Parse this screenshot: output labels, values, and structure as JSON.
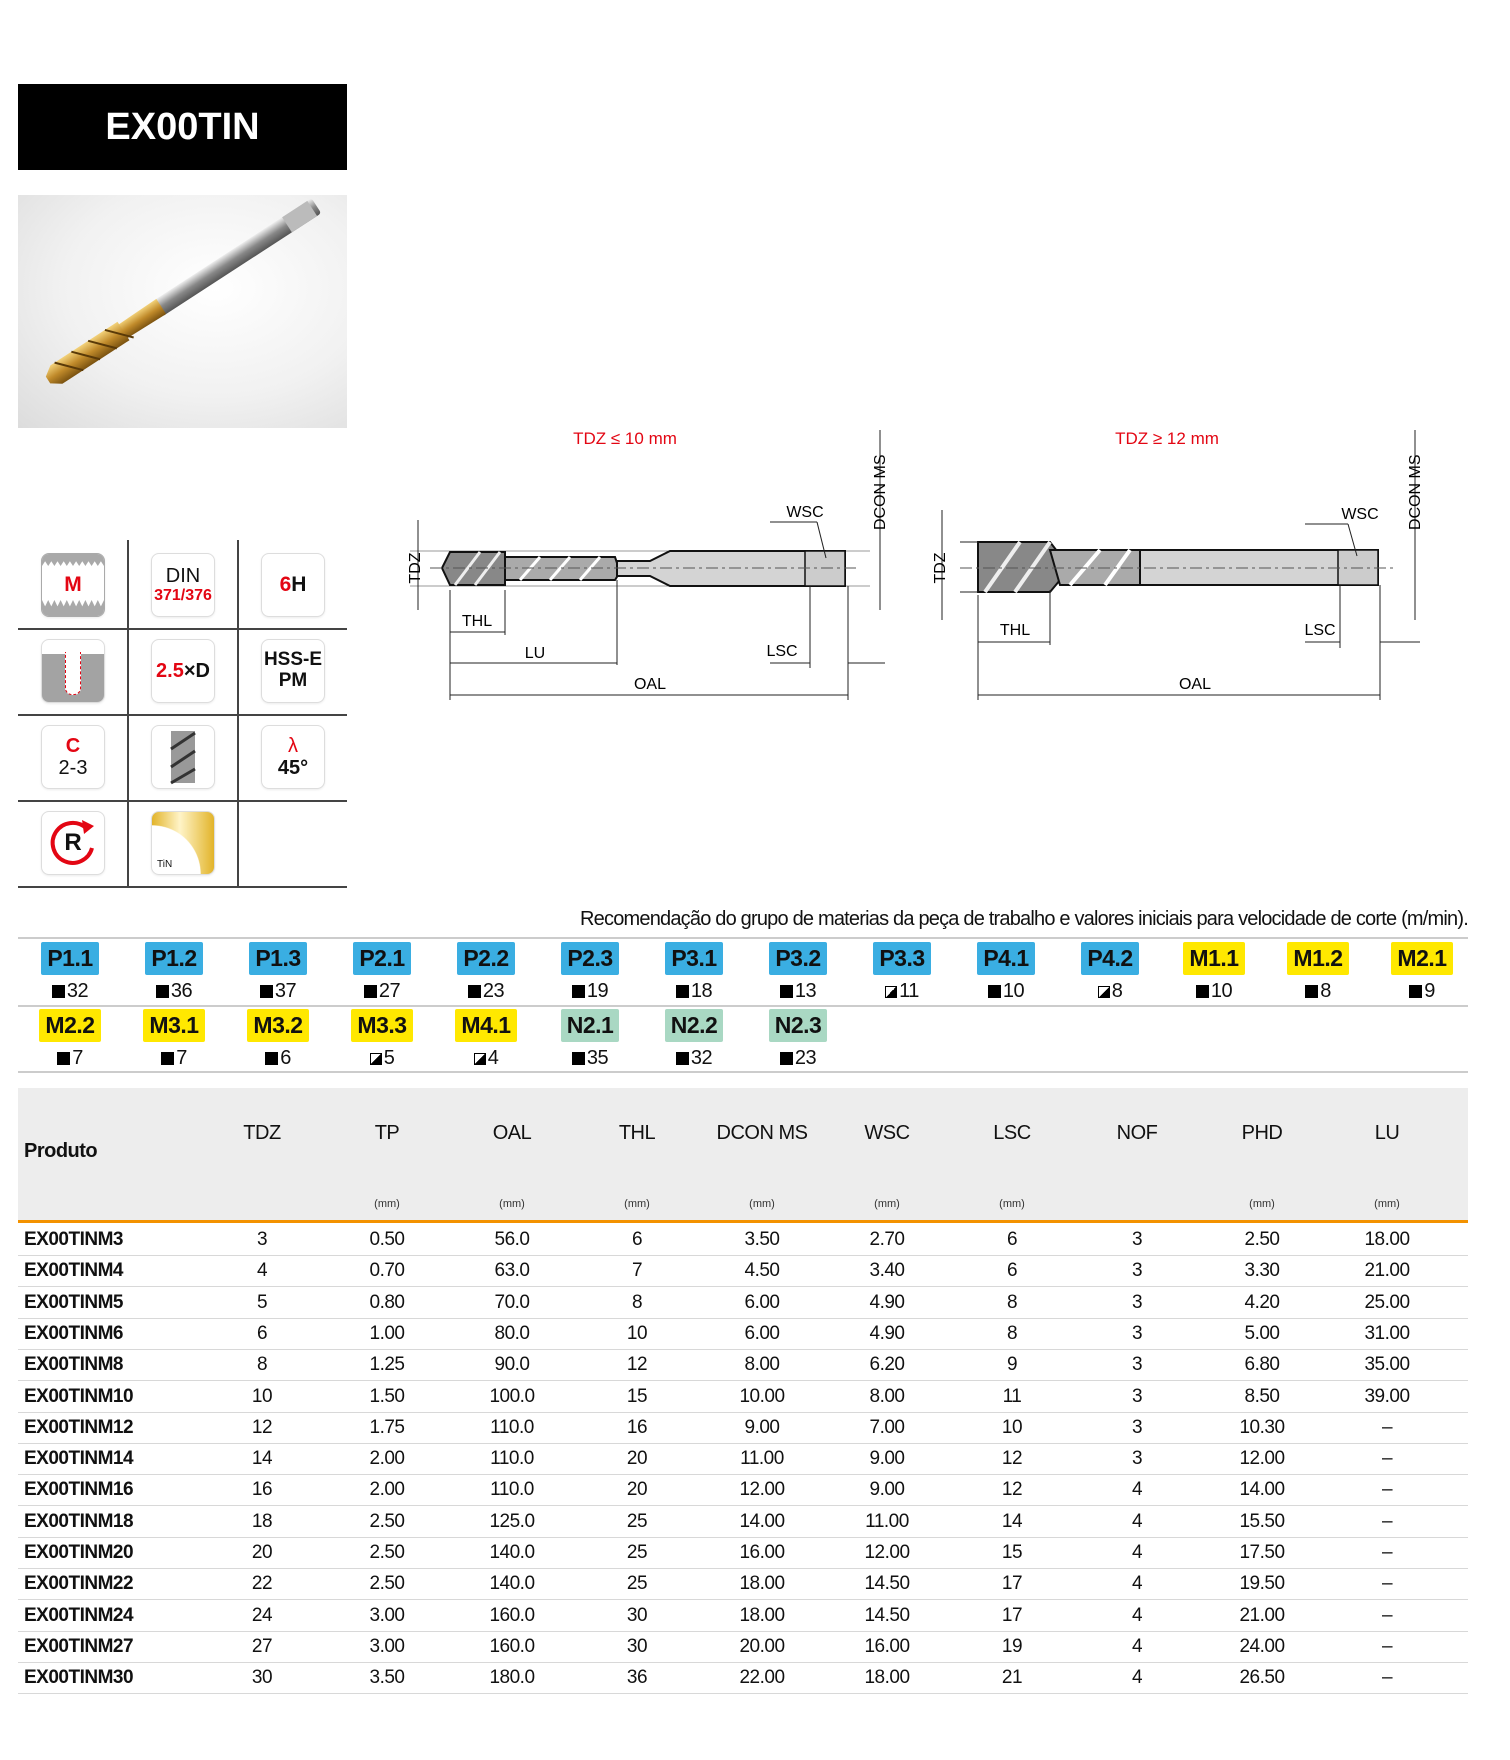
{
  "title": "EX00TIN",
  "icon_grid": {
    "thread_profile": "M",
    "standard_top": "DIN",
    "standard_bottom": "371/376",
    "tolerance_num": "6",
    "tolerance_letter": "H",
    "depth_num": "2.5",
    "depth_suffix": "×D",
    "material_line1": "HSS-E",
    "material_line2": "PM",
    "chamfer_letter": "C",
    "chamfer_value": "2-3",
    "helix_symbol": "λ",
    "helix_value": "45°",
    "rotation_letter": "R",
    "coating": "TiN",
    "coating_color": "#e2b42a"
  },
  "diagrams": [
    {
      "caption": "TDZ ≤ 10 mm",
      "labels": {
        "tdz": "TDZ",
        "thl": "THL",
        "lu": "LU",
        "oal": "OAL",
        "lsc": "LSC",
        "wsc": "WSC",
        "dcon": "DCON MS"
      }
    },
    {
      "caption": "TDZ ≥ 12 mm",
      "labels": {
        "tdz": "TDZ",
        "thl": "THL",
        "oal": "OAL",
        "lsc": "LSC",
        "wsc": "WSC",
        "dcon": "DCON MS"
      }
    }
  ],
  "recommendation_text": "Recomendação do grupo de materias da peça de trabalho e valores iniciais para velocidade de corte (m/min).",
  "colors": {
    "P": "#3aaee2",
    "M": "#ffe800",
    "N": "#a9d8c3",
    "accent_red": "#e30613",
    "header_rule": "#f39200"
  },
  "materials": [
    {
      "code": "P1.1",
      "group": "P",
      "symbol": "full",
      "value": "32"
    },
    {
      "code": "P1.2",
      "group": "P",
      "symbol": "full",
      "value": "36"
    },
    {
      "code": "P1.3",
      "group": "P",
      "symbol": "full",
      "value": "37"
    },
    {
      "code": "P2.1",
      "group": "P",
      "symbol": "full",
      "value": "27"
    },
    {
      "code": "P2.2",
      "group": "P",
      "symbol": "full",
      "value": "23"
    },
    {
      "code": "P2.3",
      "group": "P",
      "symbol": "full",
      "value": "19"
    },
    {
      "code": "P3.1",
      "group": "P",
      "symbol": "full",
      "value": "18"
    },
    {
      "code": "P3.2",
      "group": "P",
      "symbol": "full",
      "value": "13"
    },
    {
      "code": "P3.3",
      "group": "P",
      "symbol": "half",
      "value": "11"
    },
    {
      "code": "P4.1",
      "group": "P",
      "symbol": "full",
      "value": "10"
    },
    {
      "code": "P4.2",
      "group": "P",
      "symbol": "half",
      "value": "8"
    },
    {
      "code": "M1.1",
      "group": "M",
      "symbol": "full",
      "value": "10"
    },
    {
      "code": "M1.2",
      "group": "M",
      "symbol": "full",
      "value": "8"
    },
    {
      "code": "M2.1",
      "group": "M",
      "symbol": "full",
      "value": "9"
    },
    {
      "code": "M2.2",
      "group": "M",
      "symbol": "full",
      "value": "7"
    },
    {
      "code": "M3.1",
      "group": "M",
      "symbol": "full",
      "value": "7"
    },
    {
      "code": "M3.2",
      "group": "M",
      "symbol": "full",
      "value": "6"
    },
    {
      "code": "M3.3",
      "group": "M",
      "symbol": "half",
      "value": "5"
    },
    {
      "code": "M4.1",
      "group": "M",
      "symbol": "half",
      "value": "4"
    },
    {
      "code": "N2.1",
      "group": "N",
      "symbol": "full",
      "value": "35"
    },
    {
      "code": "N2.2",
      "group": "N",
      "symbol": "full",
      "value": "32"
    },
    {
      "code": "N2.3",
      "group": "N",
      "symbol": "full",
      "value": "23"
    }
  ],
  "table": {
    "product_header": "Produto",
    "columns": [
      {
        "label": "TDZ",
        "unit": ""
      },
      {
        "label": "TP",
        "unit": "(mm)"
      },
      {
        "label": "OAL",
        "unit": "(mm)"
      },
      {
        "label": "THL",
        "unit": "(mm)"
      },
      {
        "label": "DCON MS",
        "unit": "(mm)"
      },
      {
        "label": "WSC",
        "unit": "(mm)"
      },
      {
        "label": "LSC",
        "unit": "(mm)"
      },
      {
        "label": "NOF",
        "unit": ""
      },
      {
        "label": "PHD",
        "unit": "(mm)"
      },
      {
        "label": "LU",
        "unit": "(mm)"
      }
    ],
    "rows": [
      [
        "EX00TINM3",
        "3",
        "0.50",
        "56.0",
        "6",
        "3.50",
        "2.70",
        "6",
        "3",
        "2.50",
        "18.00"
      ],
      [
        "EX00TINM4",
        "4",
        "0.70",
        "63.0",
        "7",
        "4.50",
        "3.40",
        "6",
        "3",
        "3.30",
        "21.00"
      ],
      [
        "EX00TINM5",
        "5",
        "0.80",
        "70.0",
        "8",
        "6.00",
        "4.90",
        "8",
        "3",
        "4.20",
        "25.00"
      ],
      [
        "EX00TINM6",
        "6",
        "1.00",
        "80.0",
        "10",
        "6.00",
        "4.90",
        "8",
        "3",
        "5.00",
        "31.00"
      ],
      [
        "EX00TINM8",
        "8",
        "1.25",
        "90.0",
        "12",
        "8.00",
        "6.20",
        "9",
        "3",
        "6.80",
        "35.00"
      ],
      [
        "EX00TINM10",
        "10",
        "1.50",
        "100.0",
        "15",
        "10.00",
        "8.00",
        "11",
        "3",
        "8.50",
        "39.00"
      ],
      [
        "EX00TINM12",
        "12",
        "1.75",
        "110.0",
        "16",
        "9.00",
        "7.00",
        "10",
        "3",
        "10.30",
        "–"
      ],
      [
        "EX00TINM14",
        "14",
        "2.00",
        "110.0",
        "20",
        "11.00",
        "9.00",
        "12",
        "3",
        "12.00",
        "–"
      ],
      [
        "EX00TINM16",
        "16",
        "2.00",
        "110.0",
        "20",
        "12.00",
        "9.00",
        "12",
        "4",
        "14.00",
        "–"
      ],
      [
        "EX00TINM18",
        "18",
        "2.50",
        "125.0",
        "25",
        "14.00",
        "11.00",
        "14",
        "4",
        "15.50",
        "–"
      ],
      [
        "EX00TINM20",
        "20",
        "2.50",
        "140.0",
        "25",
        "16.00",
        "12.00",
        "15",
        "4",
        "17.50",
        "–"
      ],
      [
        "EX00TINM22",
        "22",
        "2.50",
        "140.0",
        "25",
        "18.00",
        "14.50",
        "17",
        "4",
        "19.50",
        "–"
      ],
      [
        "EX00TINM24",
        "24",
        "3.00",
        "160.0",
        "30",
        "18.00",
        "14.50",
        "17",
        "4",
        "21.00",
        "–"
      ],
      [
        "EX00TINM27",
        "27",
        "3.00",
        "160.0",
        "30",
        "20.00",
        "16.00",
        "19",
        "4",
        "24.00",
        "–"
      ],
      [
        "EX00TINM30",
        "30",
        "3.50",
        "180.0",
        "36",
        "22.00",
        "18.00",
        "21",
        "4",
        "26.50",
        "–"
      ]
    ]
  }
}
